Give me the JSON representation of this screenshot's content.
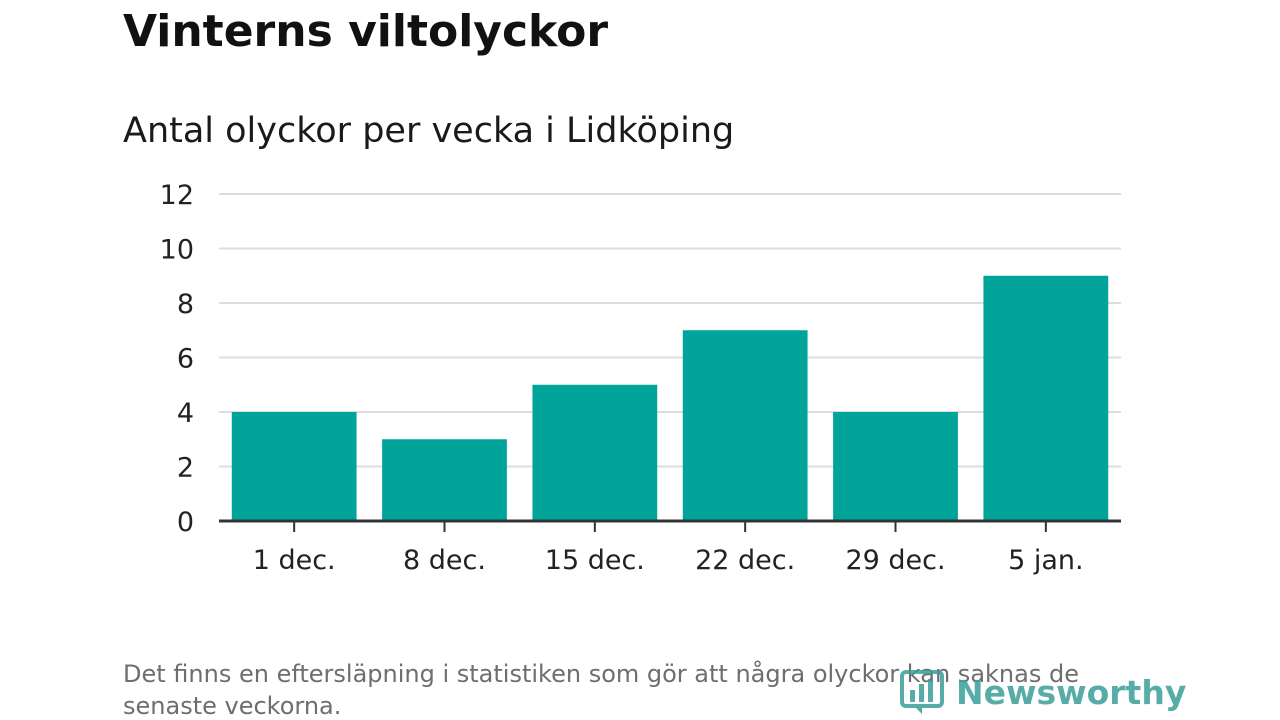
{
  "title": "Vinterns viltolyckor",
  "subtitle": "Antal olyckor per vecka i Lidköping",
  "footnote": "Det finns en eftersläpning i statistiken som gör att några olyckor kan saknas de senaste veckorna.",
  "brand": {
    "name": "Newsworthy",
    "icon": "newsworthy-logo-icon",
    "color": "#3a9e9a"
  },
  "colors": {
    "bar": "#00a499",
    "grid": "#dddddd",
    "axis": "#333333",
    "tick_text": "#222222"
  },
  "chart_data": {
    "type": "bar",
    "categories": [
      "1 dec.",
      "8 dec.",
      "15 dec.",
      "22 dec.",
      "29 dec.",
      "5 jan."
    ],
    "values": [
      4,
      3,
      5,
      7,
      4,
      9
    ],
    "title": "Vinterns viltolyckor",
    "subtitle": "Antal olyckor per vecka i Lidköping",
    "xlabel": "",
    "ylabel": "",
    "ylim": [
      0,
      12
    ],
    "yticks": [
      0,
      2,
      4,
      6,
      8,
      10,
      12
    ],
    "grid": true,
    "legend": "none"
  }
}
